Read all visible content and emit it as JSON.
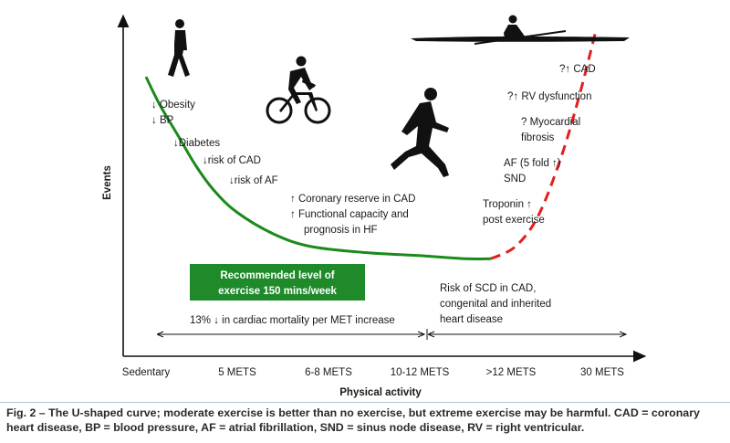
{
  "chart_data": {
    "type": "line",
    "xlabel": "Physical activity",
    "ylabel": "Events",
    "x_ticks": [
      "Sedentary",
      "5 METS",
      "6-8 METS",
      "10-12 METS",
      ">12 METS",
      "30 METS"
    ],
    "series": [
      {
        "style": "solid",
        "color": "#1a8a1a",
        "x": [
          0,
          0.15,
          0.35,
          0.55,
          0.75,
          1.0,
          1.4,
          1.8,
          2.4,
          3.0,
          3.5,
          3.78
        ],
        "y": [
          0.81,
          0.72,
          0.62,
          0.52,
          0.44,
          0.37,
          0.3,
          0.26,
          0.24,
          0.23,
          0.22,
          0.22
        ]
      },
      {
        "style": "dashed",
        "color": "#e02020",
        "x": [
          3.78,
          4.05,
          4.3,
          4.55,
          4.75,
          4.93
        ],
        "y": [
          0.22,
          0.26,
          0.36,
          0.55,
          0.75,
          0.96
        ]
      }
    ],
    "annotations": {
      "low_activity": [
        "↓ Obesity",
        "↓ BP",
        "↓Diabetes",
        "↓risk of CAD",
        "↓risk of AF"
      ],
      "moderate": [
        "↑ Coronary reserve  in CAD",
        "↑ Functional capacity and",
        "prognosis in HF"
      ],
      "high_risks": [
        "?↑ CAD",
        "?↑ RV dysfunction",
        "? Myocardial",
        "fibrosis",
        "AF (5 fold ↑)",
        "SND",
        "Troponin ↑",
        "post exercise"
      ],
      "scd": [
        "Risk of SCD in CAD,",
        "congenital and inherited",
        "heart disease"
      ],
      "recommended_box": [
        "Recommended level of",
        "exercise 150 mins/week"
      ],
      "mortality": "13% ↓ in cardiac mortality per MET increase"
    },
    "colors": {
      "recommended_box": "#1e8a2a",
      "curve_green": "#1a8a1a",
      "curve_red": "#e02020"
    },
    "icons": [
      "walking-person-icon",
      "cyclist-icon",
      "runner-icon",
      "rower-icon"
    ]
  },
  "caption": {
    "label": "Fig. 2 – ",
    "text": "The U-shaped curve; moderate exercise is better than no exercise, but extreme exercise may be harmful. CAD = coronary heart disease, BP = blood pressure, AF = atrial fibrillation, SND = sinus node disease, RV = right ventricular."
  }
}
